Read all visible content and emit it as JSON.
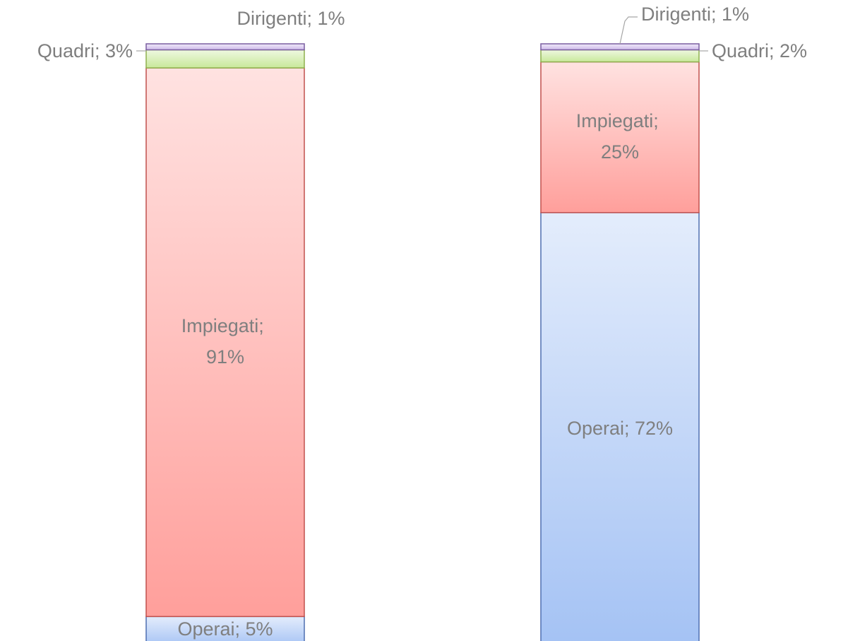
{
  "chart_data": {
    "type": "stacked_bar_100",
    "categories": [
      null,
      null
    ],
    "series": [
      {
        "name": "Operai",
        "color": "#a4c2f4",
        "edgecolor": "#4f6fb0",
        "values": [
          5,
          72
        ],
        "value_labels": [
          "Operai; 5%",
          "Operai; 72%"
        ]
      },
      {
        "name": "Impiegati",
        "color": "#ff9f9b",
        "edgecolor": "#c0504d",
        "values": [
          91,
          25
        ],
        "value_labels": [
          "Impiegati; 91%",
          "Impiegati; 25%"
        ]
      },
      {
        "name": "Quadri",
        "color": "#c8e89a",
        "edgecolor": "#8fb04f",
        "values": [
          3,
          2
        ],
        "value_labels": [
          "Quadri; 3%",
          "Quadri; 2%"
        ]
      },
      {
        "name": "Dirigenti",
        "color": "#cdb9ea",
        "edgecolor": "#7a5ea0",
        "values": [
          1,
          1
        ],
        "value_labels": [
          "Dirigenti; 1%",
          "Dirigenti; 1%"
        ]
      }
    ]
  }
}
